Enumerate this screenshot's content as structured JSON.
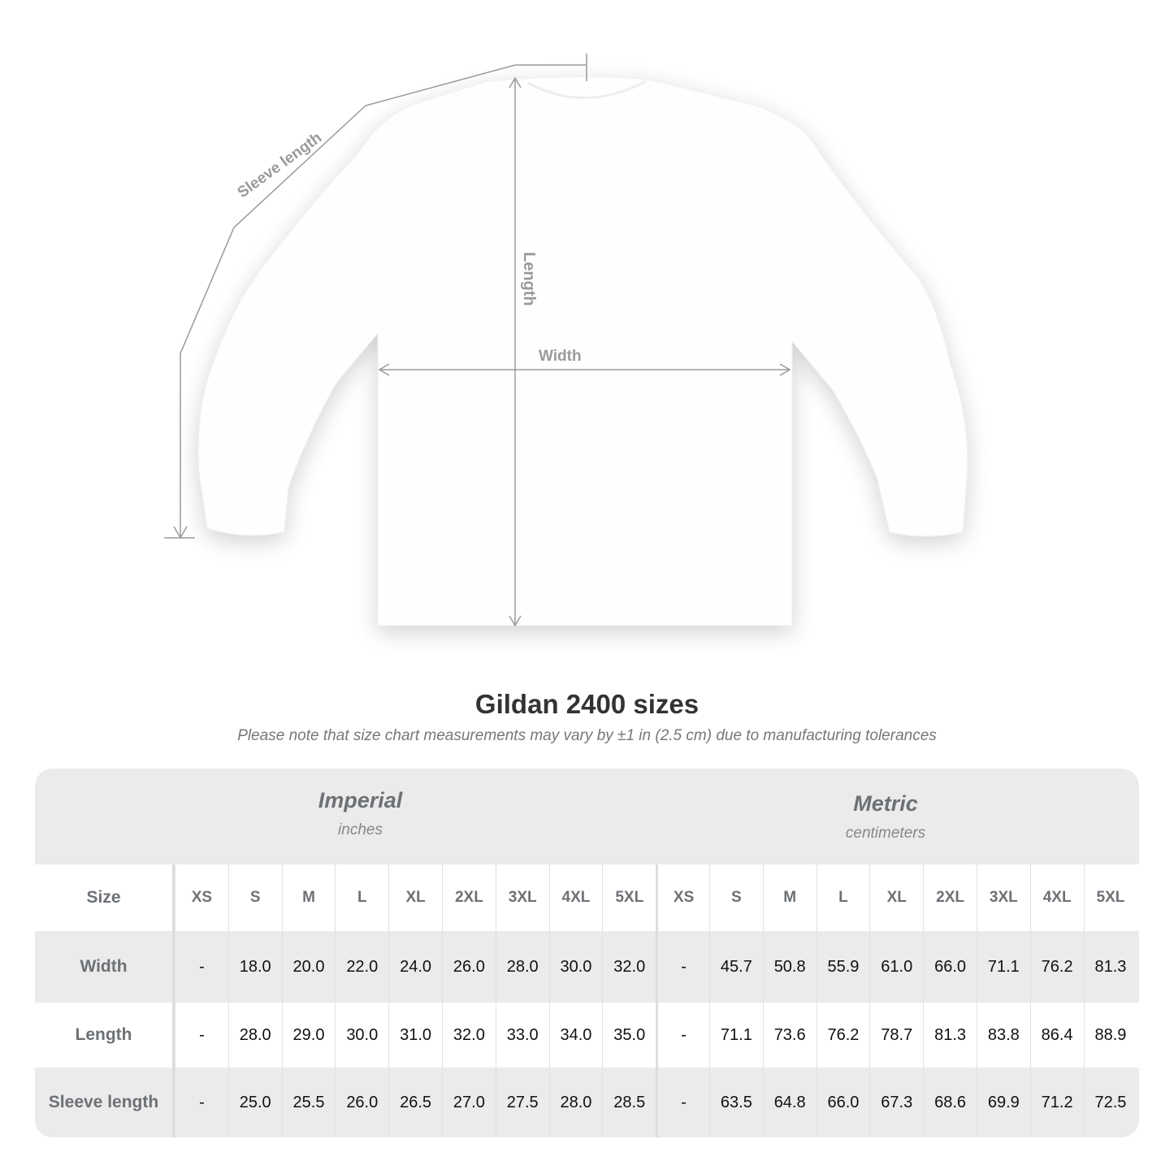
{
  "diagram": {
    "labels": {
      "sleeve": "Sleeve length",
      "length": "Length",
      "width": "Width"
    },
    "line_color": "#9a9a9a"
  },
  "title": "Gildan 2400 sizes",
  "subtitle": "Please note that size chart measurements may vary by ±1 in (2.5 cm) due to manufacturing tolerances",
  "table": {
    "imperial": {
      "name": "Imperial",
      "unit": "inches"
    },
    "metric": {
      "name": "Metric",
      "unit": "centimeters"
    },
    "size_label": "Size",
    "sizes": [
      "XS",
      "S",
      "M",
      "L",
      "XL",
      "2XL",
      "3XL",
      "4XL",
      "5XL"
    ],
    "rows": [
      {
        "label": "Width",
        "imperial": [
          "-",
          "18.0",
          "20.0",
          "22.0",
          "24.0",
          "26.0",
          "28.0",
          "30.0",
          "32.0"
        ],
        "metric": [
          "-",
          "45.7",
          "50.8",
          "55.9",
          "61.0",
          "66.0",
          "71.1",
          "76.2",
          "81.3"
        ]
      },
      {
        "label": "Length",
        "imperial": [
          "-",
          "28.0",
          "29.0",
          "30.0",
          "31.0",
          "32.0",
          "33.0",
          "34.0",
          "35.0"
        ],
        "metric": [
          "-",
          "71.1",
          "73.6",
          "76.2",
          "78.7",
          "81.3",
          "83.8",
          "86.4",
          "88.9"
        ]
      },
      {
        "label": "Sleeve length",
        "imperial": [
          "-",
          "25.0",
          "25.5",
          "26.0",
          "26.5",
          "27.0",
          "27.5",
          "28.0",
          "28.5"
        ],
        "metric": [
          "-",
          "63.5",
          "64.8",
          "66.0",
          "67.3",
          "68.6",
          "69.9",
          "71.2",
          "72.5"
        ]
      }
    ],
    "colors": {
      "band": "#ebebeb",
      "label_text": "#6d7175"
    }
  }
}
